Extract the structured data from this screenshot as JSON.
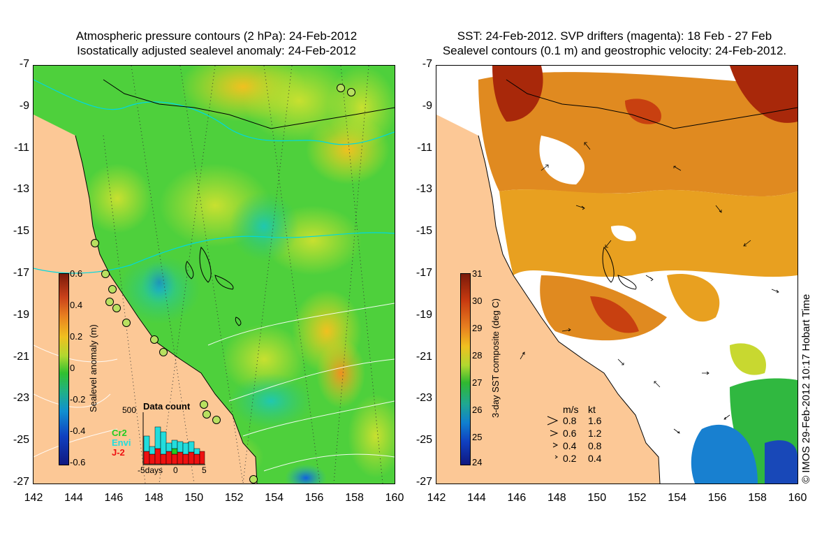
{
  "left_panel": {
    "title_line1": "Atmospheric pressure contours (2 hPa): 24-Feb-2012",
    "title_line2": "Isostatically adjusted sealevel anomaly: 24-Feb-2012",
    "colorbar": {
      "label": "Sealevel anomaly (m)",
      "ticks": [
        "0.6",
        "0.4",
        "0.2",
        "0",
        "-0.2",
        "-0.4",
        "-0.6"
      ],
      "range": [
        -0.6,
        0.6
      ]
    },
    "inset": {
      "title": "Data count",
      "y_max_label": "500",
      "x_labels": [
        "-5days",
        "0",
        "5"
      ],
      "legend": [
        {
          "name": "Cr2",
          "color": "#22cc22"
        },
        {
          "name": "Envi",
          "color": "#22dddd"
        },
        {
          "name": "J-2",
          "color": "#ee1111"
        }
      ]
    }
  },
  "right_panel": {
    "title_line1": "SST: 24-Feb-2012. SVP drifters (magenta): 18 Feb - 27 Feb",
    "title_line2": "Sealevel contours (0.1 m) and geostrophic velocity: 24-Feb-2012.",
    "colorbar": {
      "label": "3-day SST composite (deg C)",
      "ticks": [
        "31",
        "30",
        "29",
        "28",
        "27",
        "26",
        "25",
        "24"
      ],
      "range": [
        24,
        31
      ]
    },
    "velocity_key": {
      "header_ms": "m/s",
      "header_kt": "kt",
      "rows": [
        {
          "ms": "0.8",
          "kt": "1.6"
        },
        {
          "ms": "0.6",
          "kt": "1.2"
        },
        {
          "ms": "0.4",
          "kt": "0.8"
        },
        {
          "ms": "0.2",
          "kt": "0.4"
        }
      ]
    }
  },
  "axes": {
    "lat_ticks": [
      "-7",
      "-9",
      "-11",
      "-13",
      "-15",
      "-17",
      "-19",
      "-21",
      "-23",
      "-25",
      "-27"
    ],
    "lon_ticks": [
      "142",
      "144",
      "146",
      "148",
      "150",
      "152",
      "154",
      "156",
      "158",
      "160"
    ],
    "lat_range": [
      -27,
      -7
    ],
    "lon_range": [
      142,
      160
    ]
  },
  "credit": "© IMOS 29-Feb-2012 10:17 Hobart Time",
  "colors": {
    "land": "#fcc896",
    "sst_missing": "#ffffff",
    "contour_pressure": "#00e0e0",
    "contour_sealevel": "#ffffff"
  }
}
